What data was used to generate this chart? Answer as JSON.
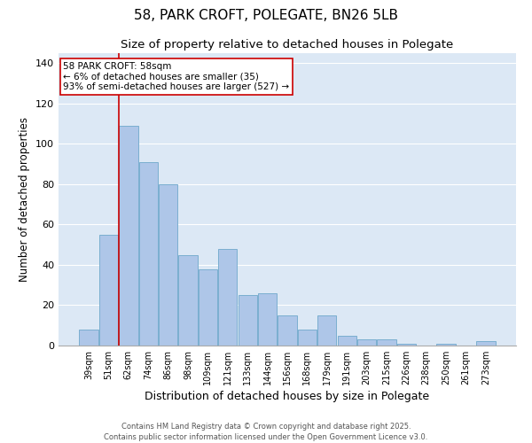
{
  "title": "58, PARK CROFT, POLEGATE, BN26 5LB",
  "subtitle": "Size of property relative to detached houses in Polegate",
  "xlabel": "Distribution of detached houses by size in Polegate",
  "ylabel": "Number of detached properties",
  "categories": [
    "39sqm",
    "51sqm",
    "62sqm",
    "74sqm",
    "86sqm",
    "98sqm",
    "109sqm",
    "121sqm",
    "133sqm",
    "144sqm",
    "156sqm",
    "168sqm",
    "179sqm",
    "191sqm",
    "203sqm",
    "215sqm",
    "226sqm",
    "238sqm",
    "250sqm",
    "261sqm",
    "273sqm"
  ],
  "values": [
    8,
    55,
    109,
    91,
    80,
    45,
    38,
    48,
    25,
    26,
    15,
    8,
    15,
    5,
    3,
    3,
    1,
    0,
    1,
    0,
    2
  ],
  "bar_color": "#aec6e8",
  "bar_edge_color": "#7aaed0",
  "background_color": "#dce8f5",
  "ylim": [
    0,
    145
  ],
  "yticks": [
    0,
    20,
    40,
    60,
    80,
    100,
    120,
    140
  ],
  "vline_x": 1.5,
  "vline_color": "#cc0000",
  "annotation_title": "58 PARK CROFT: 58sqm",
  "annotation_line1": "← 6% of detached houses are smaller (35)",
  "annotation_line2": "93% of semi-detached houses are larger (527) →",
  "footer_line1": "Contains HM Land Registry data © Crown copyright and database right 2025.",
  "footer_line2": "Contains public sector information licensed under the Open Government Licence v3.0.",
  "title_fontsize": 11,
  "subtitle_fontsize": 9.5,
  "xlabel_fontsize": 9,
  "ylabel_fontsize": 8.5,
  "annotation_fontsize": 7.5,
  "footer_fontsize": 6.0
}
